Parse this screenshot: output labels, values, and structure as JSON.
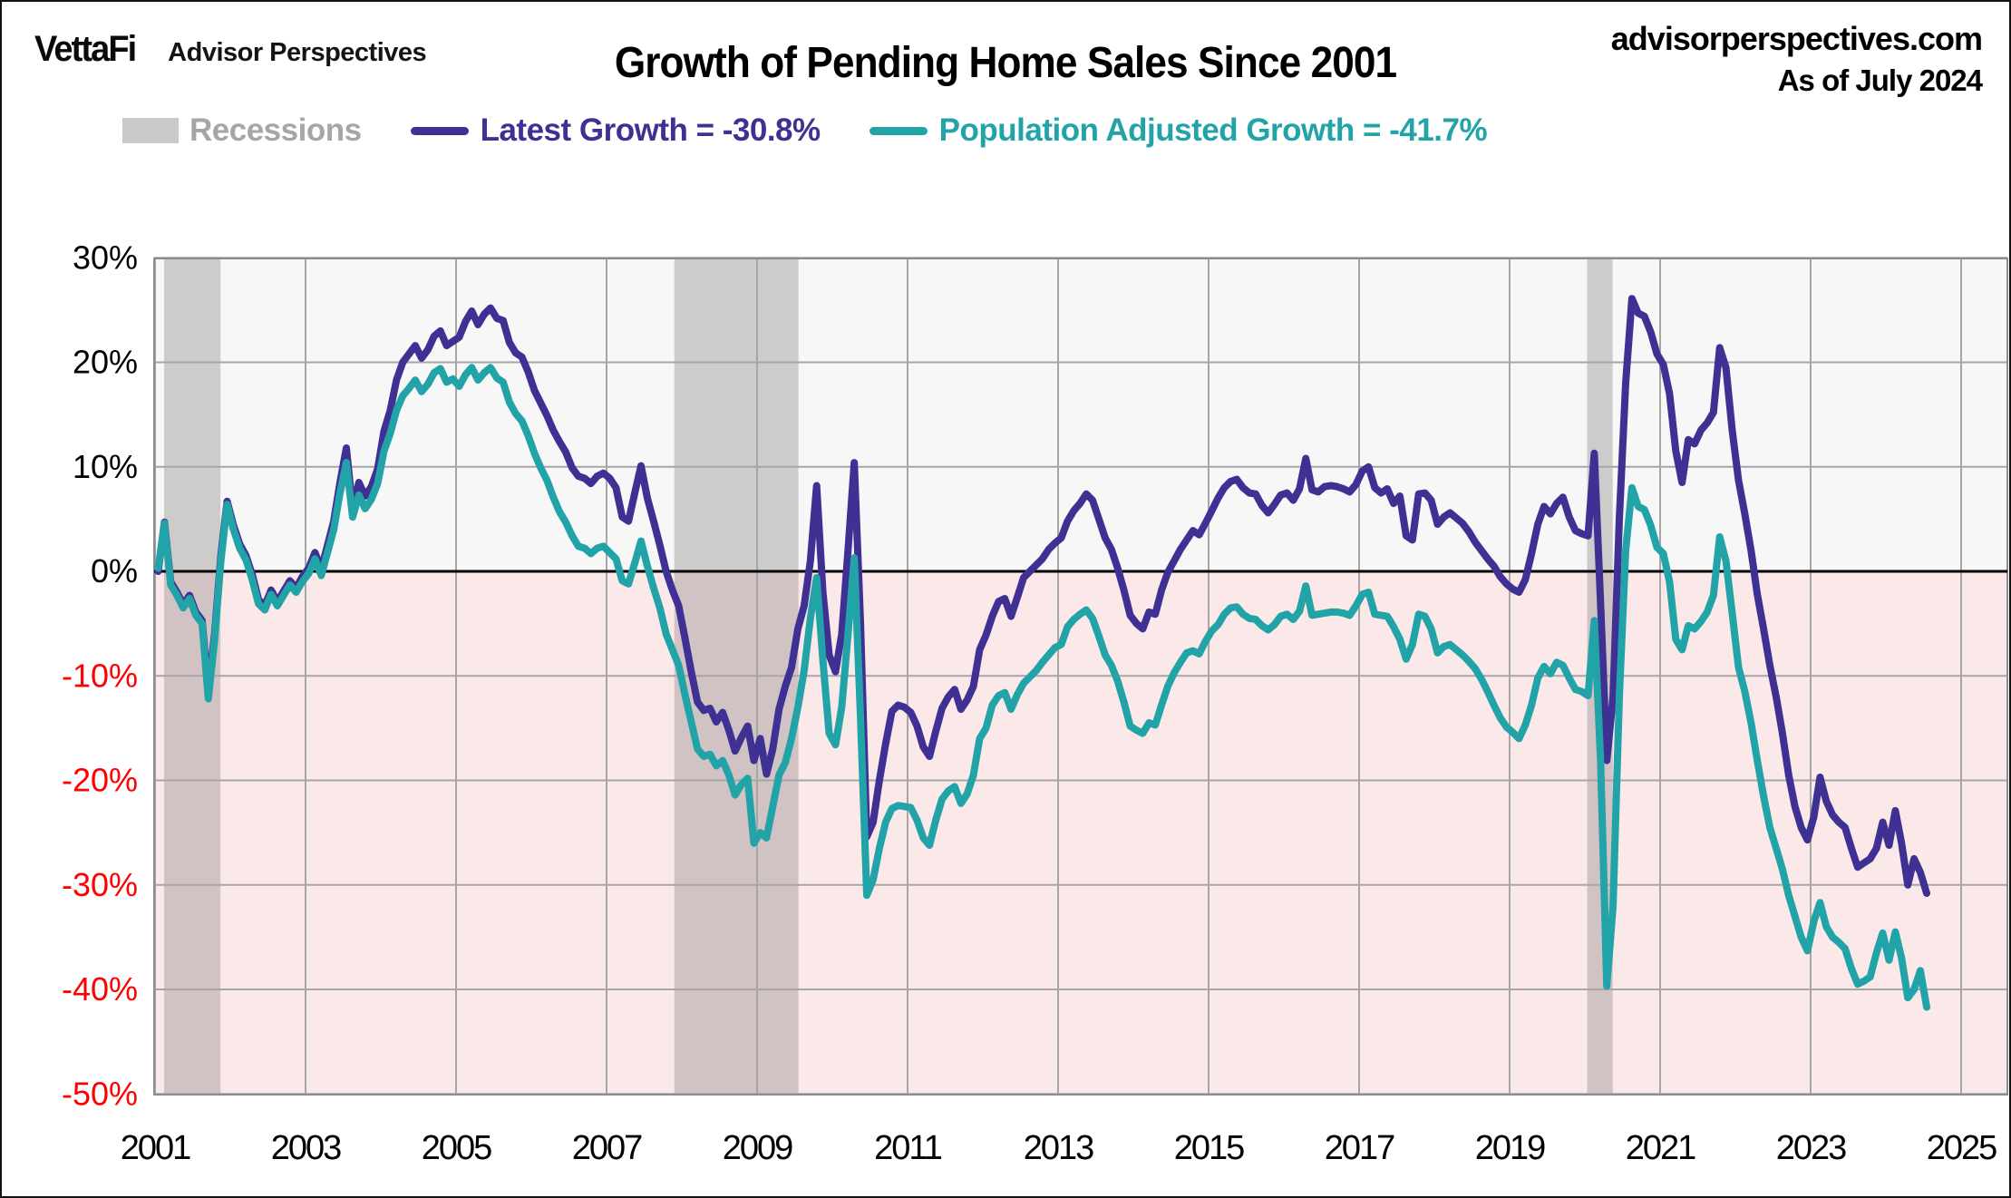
{
  "header": {
    "logo_primary": "VettaFi",
    "logo_secondary": "Advisor Perspectives",
    "title": "Growth of Pending Home Sales Since 2001",
    "source": "advisorperspectives.com",
    "as_of": "As of July 2024"
  },
  "legend": {
    "recessions_label": "Recessions",
    "latest_growth_label": "Latest Growth = -30.8%",
    "population_adjusted_label": "Population Adjusted Growth = -41.7%"
  },
  "colors": {
    "latest_growth": "#3F3093",
    "population_adjusted": "#21A3A8",
    "recession_band": "#969090",
    "recession_swatch": "#C9C9C9",
    "recessions_label": "#A6A6A6",
    "positive_region_bg": "#F7F7F7",
    "negative_region_bg": "#FBE9E9",
    "gridline": "#A6A6A6",
    "plot_border": "#8C8C8C",
    "zero_line": "#000000",
    "positive_tick": "#000000",
    "negative_tick": "#FF0000"
  },
  "chart_data": {
    "type": "line",
    "title": "Growth of Pending Home Sales Since 2001",
    "xlabel": "",
    "ylabel": "",
    "grid": true,
    "legend_position": "top",
    "frequency": "monthly",
    "start": "2001-01",
    "end": "2024-07",
    "xlim": [
      2001,
      2025.6
    ],
    "ylim": [
      -50,
      30
    ],
    "x_ticks": [
      2001,
      2003,
      2005,
      2007,
      2009,
      2011,
      2013,
      2015,
      2017,
      2019,
      2021,
      2023,
      2025
    ],
    "y_ticks": [
      {
        "value": 30,
        "label": "30%"
      },
      {
        "value": 20,
        "label": "20%"
      },
      {
        "value": 10,
        "label": "10%"
      },
      {
        "value": 0,
        "label": "0%"
      },
      {
        "value": -10,
        "label": "-10%"
      },
      {
        "value": -20,
        "label": "-20%"
      },
      {
        "value": -30,
        "label": "-30%"
      },
      {
        "value": -40,
        "label": "-40%"
      },
      {
        "value": -50,
        "label": "-50%"
      }
    ],
    "recessions": [
      [
        2001.12,
        2001.87
      ],
      [
        2007.9,
        2009.55
      ],
      [
        2020.03,
        2020.37
      ]
    ],
    "series": [
      {
        "name": "Latest Growth = -30.8%",
        "latest_value": -30.8,
        "color": "#3F3093",
        "values": [
          0.0,
          4.7,
          -1.0,
          -2.0,
          -3.2,
          -2.3,
          -3.9,
          -4.7,
          -11.5,
          -6.0,
          1.5,
          6.7,
          4.4,
          2.6,
          1.5,
          -0.3,
          -2.7,
          -3.3,
          -1.8,
          -2.9,
          -1.9,
          -0.9,
          -1.6,
          -0.5,
          0.3,
          1.8,
          0.2,
          2.5,
          4.8,
          8.5,
          11.8,
          6.0,
          8.5,
          7.2,
          8.1,
          9.8,
          13.4,
          15.4,
          18.3,
          20.0,
          20.8,
          21.6,
          20.4,
          21.2,
          22.5,
          23.0,
          21.6,
          22.0,
          22.4,
          23.9,
          24.9,
          23.6,
          24.6,
          25.2,
          24.2,
          24.0,
          21.9,
          20.9,
          20.5,
          19.1,
          17.3,
          16.1,
          14.9,
          13.5,
          12.4,
          11.4,
          9.9,
          9.1,
          8.9,
          8.4,
          9.1,
          9.4,
          8.9,
          8.0,
          5.2,
          4.8,
          7.5,
          10.1,
          7.0,
          4.8,
          2.5,
          0.0,
          -1.8,
          -3.3,
          -6.4,
          -9.6,
          -12.5,
          -13.3,
          -13.1,
          -14.4,
          -13.5,
          -15.2,
          -17.2,
          -15.9,
          -14.8,
          -18.1,
          -16.0,
          -19.4,
          -17.0,
          -13.2,
          -11.0,
          -9.2,
          -5.5,
          -3.3,
          1.0,
          8.2,
          -2.0,
          -8.0,
          -9.6,
          -6.0,
          2.0,
          10.4,
          -5.0,
          -25.4,
          -24.0,
          -20.0,
          -16.5,
          -13.4,
          -12.8,
          -13.0,
          -13.5,
          -14.8,
          -16.8,
          -17.7,
          -15.3,
          -13.1,
          -12.0,
          -11.3,
          -13.2,
          -12.3,
          -11.0,
          -7.5,
          -6.1,
          -4.3,
          -2.9,
          -2.6,
          -4.3,
          -2.5,
          -0.6,
          0.0,
          0.6,
          1.2,
          2.1,
          2.7,
          3.2,
          4.8,
          5.8,
          6.5,
          7.4,
          6.8,
          5.0,
          3.2,
          2.1,
          0.3,
          -1.8,
          -4.2,
          -5.0,
          -5.5,
          -3.9,
          -4.1,
          -1.8,
          -0.1,
          1.0,
          2.1,
          3.0,
          3.9,
          3.5,
          4.6,
          5.8,
          7.0,
          8.0,
          8.6,
          8.8,
          8.0,
          7.5,
          7.4,
          6.3,
          5.6,
          6.4,
          7.3,
          7.5,
          6.8,
          7.9,
          10.8,
          7.8,
          7.6,
          8.1,
          8.2,
          8.1,
          7.9,
          7.6,
          8.3,
          9.6,
          10.0,
          8.0,
          7.5,
          7.9,
          6.5,
          7.2,
          3.4,
          3.0,
          7.4,
          7.5,
          6.8,
          4.5,
          5.2,
          5.6,
          5.1,
          4.6,
          3.8,
          2.8,
          2.0,
          1.2,
          0.5,
          -0.5,
          -1.2,
          -1.7,
          -2.0,
          -0.8,
          1.7,
          4.5,
          6.2,
          5.5,
          6.5,
          7.1,
          5.2,
          3.9,
          3.6,
          3.4,
          11.3,
          -3.0,
          -18.1,
          -12.0,
          5.0,
          18.0,
          26.1,
          24.7,
          24.4,
          22.9,
          20.8,
          19.8,
          17.0,
          11.5,
          8.5,
          12.6,
          12.2,
          13.5,
          14.2,
          15.2,
          21.4,
          19.5,
          13.5,
          8.7,
          5.5,
          2.0,
          -2.2,
          -5.5,
          -9.0,
          -12.0,
          -15.5,
          -19.5,
          -22.5,
          -24.5,
          -25.7,
          -23.5,
          -19.7,
          -22.0,
          -23.3,
          -24.0,
          -24.5,
          -26.5,
          -28.3,
          -27.9,
          -27.5,
          -26.5,
          -24.0,
          -26.2,
          -22.9,
          -26.0,
          -30.0,
          -27.5,
          -28.8,
          -30.8
        ]
      },
      {
        "name": "Population Adjusted Growth = -41.7%",
        "latest_value": -41.7,
        "color": "#21A3A8",
        "values": [
          0.3,
          4.6,
          -1.3,
          -2.3,
          -3.5,
          -2.6,
          -4.2,
          -5.0,
          -12.2,
          -6.5,
          1.0,
          6.4,
          4.0,
          2.2,
          1.1,
          -0.8,
          -3.1,
          -3.7,
          -2.2,
          -3.3,
          -2.3,
          -1.3,
          -2.0,
          -1.0,
          -0.2,
          1.2,
          -0.4,
          1.8,
          4.0,
          7.5,
          10.4,
          5.2,
          7.3,
          6.0,
          6.9,
          8.4,
          11.5,
          13.2,
          15.4,
          16.8,
          17.5,
          18.3,
          17.2,
          17.9,
          19.0,
          19.4,
          18.1,
          18.4,
          17.7,
          18.8,
          19.5,
          18.3,
          19.0,
          19.5,
          18.5,
          18.1,
          16.2,
          15.1,
          14.4,
          13.0,
          11.3,
          9.9,
          8.7,
          7.1,
          5.7,
          4.7,
          3.4,
          2.4,
          2.2,
          1.7,
          2.2,
          2.4,
          1.8,
          1.2,
          -0.9,
          -1.2,
          0.8,
          2.9,
          0.5,
          -1.6,
          -3.5,
          -6.0,
          -7.5,
          -9.0,
          -11.8,
          -14.4,
          -17.0,
          -17.7,
          -17.5,
          -18.6,
          -18.1,
          -19.5,
          -21.4,
          -20.4,
          -19.8,
          -26.0,
          -25.0,
          -25.5,
          -22.5,
          -19.5,
          -18.3,
          -16.0,
          -13.0,
          -9.5,
          -4.5,
          -0.6,
          -8.5,
          -15.5,
          -16.6,
          -13.0,
          -6.0,
          1.3,
          -14.0,
          -31.0,
          -29.5,
          -26.5,
          -24.0,
          -22.7,
          -22.4,
          -22.5,
          -22.6,
          -23.8,
          -25.5,
          -26.2,
          -23.8,
          -21.8,
          -21.0,
          -20.6,
          -22.2,
          -21.3,
          -19.5,
          -16.0,
          -15.0,
          -12.8,
          -11.9,
          -11.6,
          -13.2,
          -11.8,
          -10.7,
          -10.1,
          -9.5,
          -8.7,
          -8.0,
          -7.3,
          -7.0,
          -5.3,
          -4.6,
          -4.1,
          -3.7,
          -4.5,
          -6.2,
          -8.0,
          -9.0,
          -10.5,
          -12.5,
          -14.8,
          -15.2,
          -15.5,
          -14.5,
          -14.7,
          -12.8,
          -11.0,
          -9.7,
          -8.7,
          -7.8,
          -7.6,
          -7.9,
          -6.7,
          -5.7,
          -5.1,
          -4.1,
          -3.5,
          -3.4,
          -4.1,
          -4.5,
          -4.6,
          -5.2,
          -5.6,
          -5.1,
          -4.3,
          -4.1,
          -4.6,
          -3.8,
          -1.4,
          -4.2,
          -4.1,
          -4.0,
          -3.9,
          -3.9,
          -4.0,
          -4.2,
          -3.3,
          -2.2,
          -2.0,
          -4.1,
          -4.2,
          -4.3,
          -5.3,
          -6.5,
          -8.4,
          -7.0,
          -4.1,
          -4.3,
          -5.5,
          -7.8,
          -7.2,
          -7.0,
          -7.5,
          -8.0,
          -8.6,
          -9.3,
          -10.3,
          -11.5,
          -12.8,
          -14.0,
          -14.9,
          -15.4,
          -16.0,
          -14.7,
          -12.8,
          -10.2,
          -9.1,
          -9.8,
          -8.7,
          -9.0,
          -10.2,
          -11.3,
          -11.5,
          -11.9,
          -4.7,
          -18.0,
          -39.7,
          -32.0,
          -12.0,
          2.0,
          8.0,
          6.2,
          5.9,
          4.4,
          2.3,
          1.7,
          -1.0,
          -6.5,
          -7.5,
          -5.2,
          -5.5,
          -4.8,
          -3.9,
          -2.3,
          3.3,
          1.0,
          -4.0,
          -9.2,
          -11.5,
          -14.5,
          -18.1,
          -21.5,
          -24.5,
          -26.5,
          -28.5,
          -31.0,
          -33.0,
          -35.0,
          -36.3,
          -33.5,
          -31.7,
          -34.0,
          -35.0,
          -35.5,
          -36.1,
          -38.0,
          -39.5,
          -39.2,
          -38.8,
          -36.5,
          -34.6,
          -37.2,
          -34.5,
          -37.0,
          -40.8,
          -40.0,
          -38.2,
          -41.7
        ]
      }
    ]
  }
}
